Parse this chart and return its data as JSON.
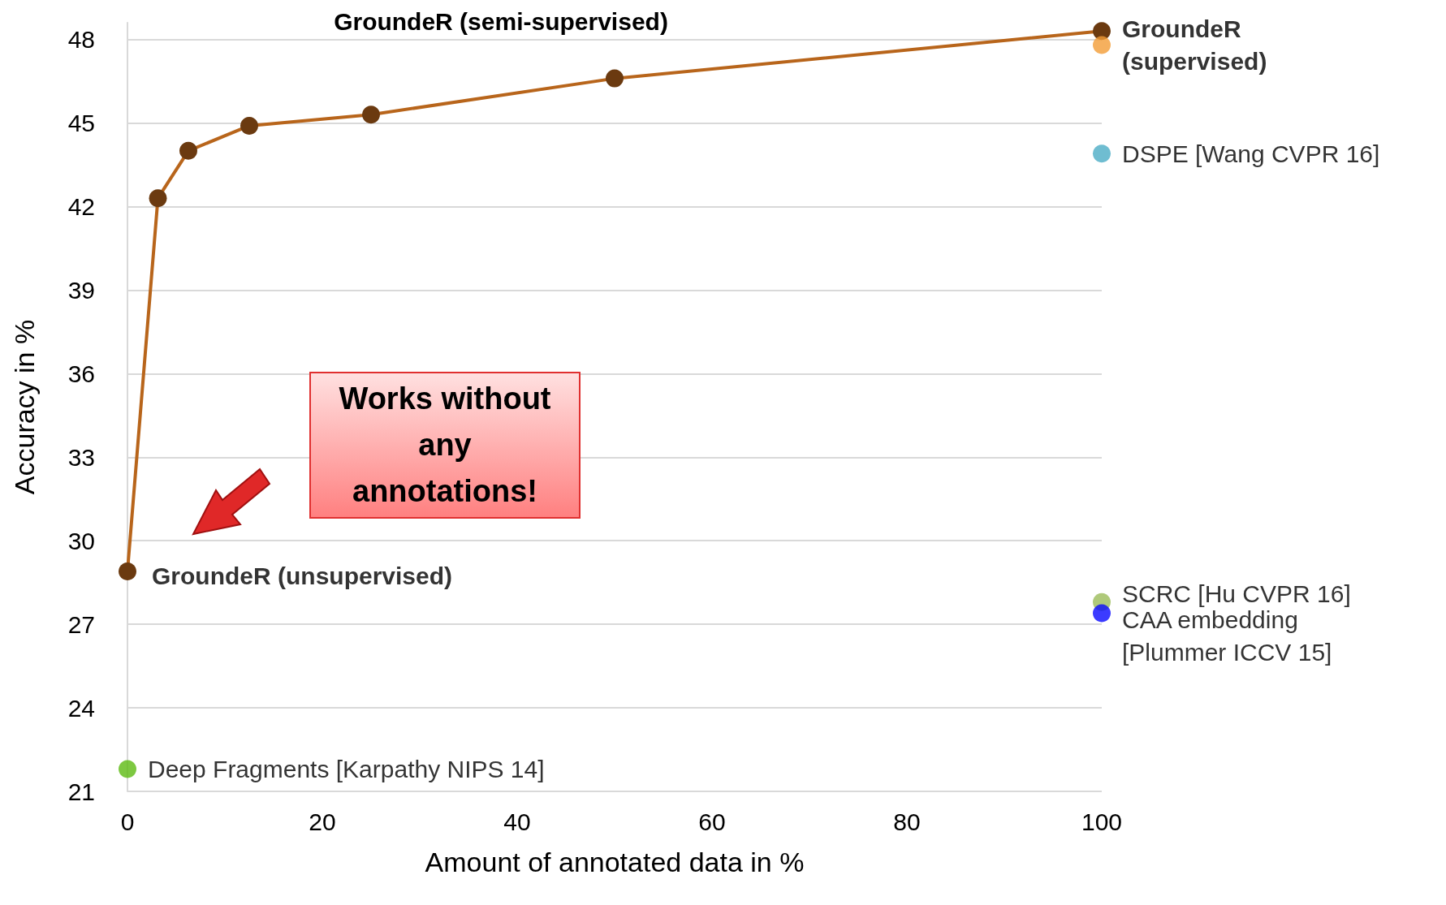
{
  "chart_data": {
    "type": "line",
    "xlabel": "Amount of annotated data in %",
    "ylabel": "Accuracy in %",
    "xlim": [
      0,
      100
    ],
    "xticks": [
      0,
      20,
      40,
      60,
      80,
      100
    ],
    "ylim": [
      21,
      48.6
    ],
    "yticks": [
      21,
      24,
      27,
      30,
      33,
      36,
      39,
      42,
      45,
      48
    ],
    "grid": "y",
    "marker": "circle",
    "line_style": "solid",
    "legend": false,
    "series": [
      {
        "name": "GroundeR (semi-supervised)",
        "color": "#b8651b",
        "x": [
          0,
          3.125,
          6.25,
          12.5,
          25,
          50,
          100
        ],
        "values": [
          28.9,
          42.3,
          44.0,
          44.9,
          45.3,
          46.6,
          48.3
        ]
      },
      {
        "name": "GroundeR (supervised)",
        "type": "scatter",
        "color": "#f39c36",
        "x": [
          100
        ],
        "values": [
          47.8
        ]
      },
      {
        "name": "DSPE [Wang CVPR 16]",
        "type": "scatter",
        "color": "#4bacc6",
        "x": [
          100
        ],
        "values": [
          43.9
        ]
      },
      {
        "name": "SCRC [Hu CVPR 16]",
        "type": "scatter",
        "color": "#9bbb59",
        "x": [
          100
        ],
        "values": [
          27.8
        ]
      },
      {
        "name": "CAA embedding [Plummer ICCV 15]",
        "type": "scatter",
        "color": "#0a0aff",
        "x": [
          100
        ],
        "values": [
          27.4
        ]
      },
      {
        "name": "Deep Fragments [Karpathy NIPS 14]",
        "type": "scatter",
        "color": "#5cba12",
        "x": [
          0
        ],
        "values": [
          21.8
        ]
      }
    ],
    "annotations": [
      {
        "text": "GroundeR (unsupervised)",
        "x": 0,
        "y": 28.9
      },
      "Works without any annotations!"
    ]
  }
}
